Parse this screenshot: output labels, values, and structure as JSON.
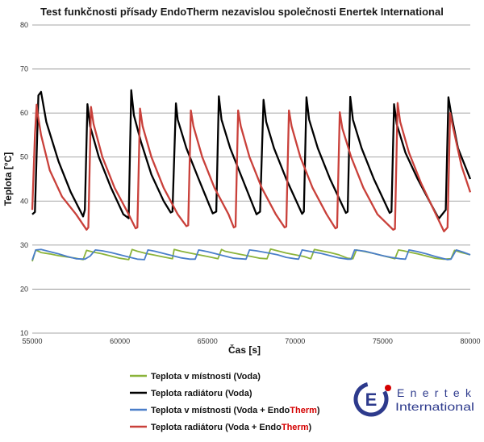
{
  "chart_data": {
    "type": "line",
    "title": "Test funkčnosti přísady EndoTherm nezavislou společnosti Enertek International",
    "xlabel": "Čas [s]",
    "ylabel": "Teplota [°C]",
    "xlim": [
      55000,
      80000
    ],
    "ylim": [
      10,
      80
    ],
    "xticks": [
      55000,
      60000,
      65000,
      70000,
      75000,
      80000
    ],
    "xtick_labels": [
      "55000",
      "60000",
      "65000",
      "70000",
      "75000",
      "80000"
    ],
    "yticks": [
      10,
      20,
      30,
      40,
      50,
      60,
      70,
      80
    ],
    "ytick_labels": [
      "10",
      "20",
      "30",
      "40",
      "50",
      "60",
      "70",
      "80"
    ],
    "grid": "horizontal",
    "legend_position": "bottom-left",
    "series": [
      {
        "name": "Teplota v místnosti (Voda)",
        "color": "#8bb33a",
        "x": [
          55000,
          55200,
          55500,
          56000,
          56500,
          57000,
          57500,
          57900,
          58100,
          58500,
          59000,
          59500,
          60000,
          60500,
          60700,
          61000,
          61500,
          62000,
          62500,
          63000,
          63100,
          63500,
          64000,
          64500,
          65000,
          65600,
          65800,
          66000,
          66500,
          67000,
          67500,
          68000,
          68400,
          68600,
          69000,
          69500,
          70000,
          70500,
          70900,
          71100,
          71500,
          72000,
          72500,
          73000,
          73300,
          73500,
          74000,
          74500,
          75000,
          75700,
          75900,
          76200,
          77000,
          77500,
          78000,
          78500,
          78900,
          79100,
          79500,
          80000
        ],
        "y": [
          26.3,
          28.9,
          28.3,
          28.0,
          27.6,
          27.3,
          27.0,
          26.7,
          28.8,
          28.4,
          28.0,
          27.5,
          27.0,
          26.7,
          29.0,
          28.6,
          28.1,
          27.7,
          27.3,
          26.9,
          29.0,
          28.6,
          28.2,
          27.8,
          27.4,
          26.9,
          29.0,
          28.6,
          28.2,
          27.8,
          27.4,
          27.0,
          26.9,
          29.1,
          28.7,
          28.2,
          27.8,
          27.4,
          26.9,
          29.0,
          28.7,
          28.3,
          27.8,
          27.0,
          26.9,
          28.9,
          28.5,
          28.1,
          27.6,
          26.9,
          28.9,
          28.7,
          28.0,
          27.5,
          27.0,
          26.8,
          26.9,
          28.8,
          28.3,
          27.8
        ]
      },
      {
        "name": "Teplota radiátoru (Voda)",
        "color": "#000000",
        "x": [
          55000,
          55150,
          55350,
          55500,
          55800,
          56500,
          57200,
          57900,
          58000,
          58150,
          58300,
          58800,
          59500,
          60200,
          60500,
          60650,
          60800,
          61200,
          61800,
          62500,
          62900,
          63000,
          63200,
          63300,
          63800,
          64500,
          65300,
          65500,
          65650,
          65800,
          66300,
          67000,
          67800,
          68000,
          68200,
          68350,
          68800,
          69500,
          70400,
          70500,
          70650,
          70800,
          71300,
          72000,
          72900,
          73000,
          73150,
          73300,
          73800,
          74500,
          75400,
          75500,
          75650,
          75800,
          76300,
          77000,
          78200,
          78600,
          78750,
          78900,
          79300,
          80000
        ],
        "y": [
          37.0,
          37.5,
          64.0,
          64.8,
          58.0,
          49.0,
          42.0,
          36.5,
          38.0,
          62.0,
          57.0,
          50.0,
          43.0,
          37.0,
          36.1,
          65.2,
          59.5,
          53.5,
          46.0,
          40.0,
          37.4,
          37.6,
          62.2,
          58.5,
          52.0,
          45.0,
          37.2,
          37.6,
          63.8,
          58.5,
          52.0,
          45.0,
          37.0,
          37.6,
          63.0,
          58.0,
          52.0,
          45.0,
          37.1,
          37.6,
          63.6,
          58.5,
          52.0,
          45.0,
          37.3,
          37.6,
          63.7,
          58.5,
          52.0,
          45.0,
          37.3,
          37.6,
          62.0,
          57.5,
          51.0,
          45.0,
          36.0,
          38.0,
          63.6,
          60.0,
          52.0,
          45.0
        ]
      },
      {
        "name": "Teplota v místnosti (Voda + EndoTherm)",
        "color": "#4a7ec9",
        "x": [
          55000,
          55200,
          55500,
          56000,
          56500,
          57000,
          57500,
          58000,
          58300,
          58600,
          59000,
          59500,
          60000,
          60500,
          61000,
          61400,
          61600,
          62000,
          62500,
          63000,
          63500,
          64000,
          64300,
          64500,
          65000,
          65500,
          66000,
          66500,
          67200,
          67400,
          67800,
          68500,
          69000,
          69500,
          70000,
          70200,
          70400,
          70800,
          71500,
          72000,
          72500,
          73000,
          73200,
          73400,
          74000,
          74500,
          75000,
          75500,
          76000,
          76300,
          76500,
          77000,
          77500,
          78000,
          78500,
          78700,
          78900,
          79200,
          79600,
          80000
        ],
        "y": [
          26.6,
          28.9,
          29.0,
          28.5,
          28.0,
          27.4,
          26.9,
          26.8,
          27.5,
          28.9,
          28.7,
          28.3,
          27.8,
          27.3,
          26.8,
          26.7,
          28.9,
          28.6,
          28.1,
          27.6,
          27.1,
          26.8,
          26.8,
          28.9,
          28.5,
          28.0,
          27.5,
          27.0,
          26.8,
          28.9,
          28.7,
          28.2,
          27.8,
          27.2,
          26.9,
          26.8,
          28.9,
          28.6,
          28.1,
          27.6,
          27.1,
          26.8,
          26.8,
          28.9,
          28.6,
          28.1,
          27.6,
          27.2,
          26.9,
          26.8,
          28.9,
          28.5,
          28.0,
          27.4,
          26.9,
          26.7,
          26.8,
          28.9,
          28.4,
          27.8
        ]
      },
      {
        "name": "Teplota radiátoru (Voda + EndoTherm)",
        "color": "#c9403a",
        "x": [
          55000,
          55150,
          55250,
          55300,
          55500,
          56000,
          56700,
          57500,
          58100,
          58200,
          58350,
          58500,
          59000,
          59700,
          60500,
          60900,
          61000,
          61150,
          61300,
          61800,
          62500,
          63300,
          63800,
          63900,
          64050,
          64200,
          64700,
          65400,
          66200,
          66500,
          66600,
          66750,
          66900,
          67400,
          68100,
          68900,
          69400,
          69500,
          69650,
          69800,
          70300,
          71000,
          71800,
          72300,
          72400,
          72550,
          72700,
          73200,
          73900,
          74700,
          75600,
          75700,
          75850,
          76000,
          76500,
          77200,
          78500,
          78700,
          78850,
          79000,
          79500,
          80000
        ],
        "y": [
          38.0,
          55.0,
          61.9,
          60.0,
          55.0,
          47.0,
          41.0,
          37.0,
          33.5,
          34.0,
          61.4,
          57.5,
          50.0,
          43.0,
          37.0,
          33.8,
          34.0,
          61.0,
          57.0,
          50.0,
          43.0,
          37.0,
          34.3,
          34.5,
          60.6,
          57.0,
          50.0,
          43.0,
          37.0,
          34.0,
          34.2,
          60.6,
          57.0,
          50.0,
          43.0,
          37.0,
          34.0,
          34.2,
          60.6,
          57.0,
          50.0,
          43.0,
          37.0,
          33.8,
          34.0,
          60.2,
          56.5,
          50.0,
          43.0,
          37.0,
          33.5,
          33.7,
          62.3,
          58.0,
          51.0,
          44.0,
          33.1,
          34.0,
          60.0,
          57.0,
          48.0,
          42.0
        ]
      }
    ]
  },
  "legend": [
    {
      "prefix": "Teplota v místnosti (Voda)",
      "endo": "",
      "therm": "",
      "suffix": ""
    },
    {
      "prefix": "Teplota radiátoru (Voda)",
      "endo": "",
      "therm": "",
      "suffix": ""
    },
    {
      "prefix": "Teplota v místnosti (Voda + ",
      "endo": "Endo",
      "therm": "Therm",
      "suffix": ")"
    },
    {
      "prefix": "Teplota radiátoru (Voda + ",
      "endo": "Endo",
      "therm": "Therm",
      "suffix": ")"
    }
  ],
  "logo": {
    "line1": "Enertek",
    "line2": "International",
    "mark_letter": "E",
    "brand_color": "#2d3a8c",
    "accent_color": "#d40000"
  }
}
